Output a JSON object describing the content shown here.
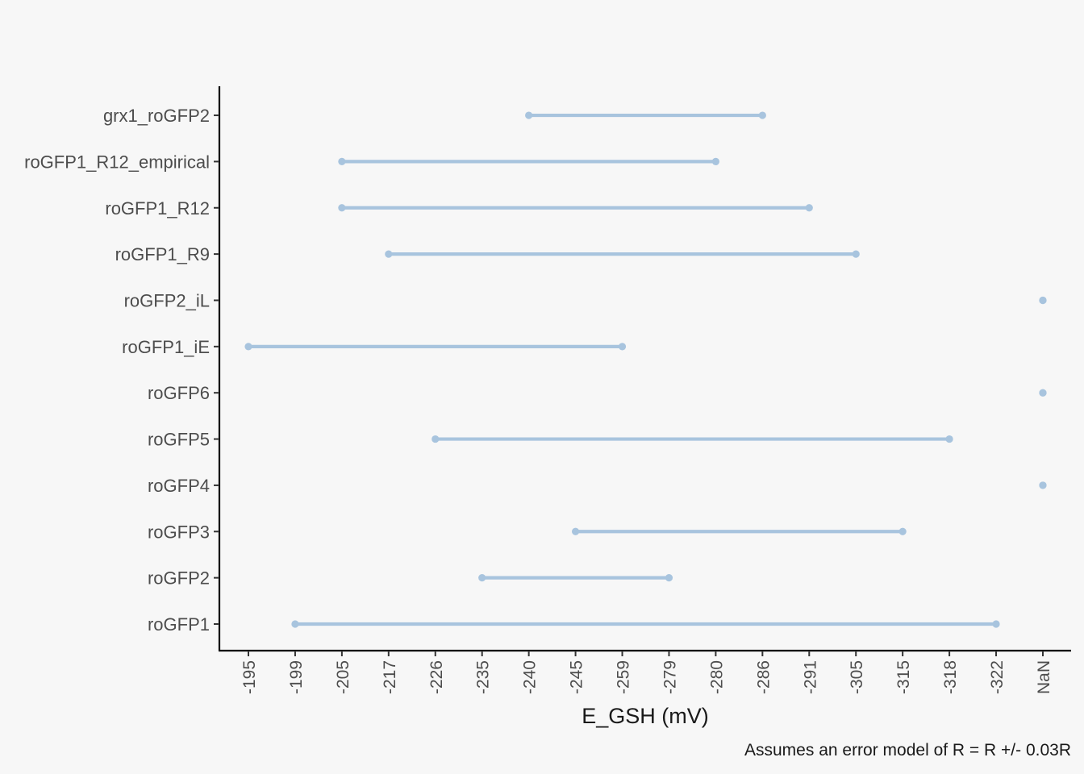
{
  "chart_data": {
    "type": "dumbbell",
    "title": "",
    "xlabel": "E_GSH (mV)",
    "ylabel": "",
    "caption": "Assumes an error model of R = R +/- 0.03R",
    "x_categories": [
      "-195",
      "-199",
      "-205",
      "-217",
      "-226",
      "-235",
      "-240",
      "-245",
      "-259",
      "-279",
      "-280",
      "-286",
      "-291",
      "-305",
      "-315",
      "-318",
      "-322",
      "NaN"
    ],
    "y_categories": [
      "roGFP1",
      "roGFP2",
      "roGFP3",
      "roGFP4",
      "roGFP5",
      "roGFP6",
      "roGFP1_iE",
      "roGFP2_iL",
      "roGFP1_R9",
      "roGFP1_R12",
      "roGFP1_R12_empirical",
      "grx1_roGFP2"
    ],
    "ranges": [
      {
        "sensor": "roGFP1",
        "low": "-199",
        "high": "-322"
      },
      {
        "sensor": "roGFP2",
        "low": "-235",
        "high": "-279"
      },
      {
        "sensor": "roGFP3",
        "low": "-245",
        "high": "-315"
      },
      {
        "sensor": "roGFP4",
        "low": "NaN",
        "high": "NaN"
      },
      {
        "sensor": "roGFP5",
        "low": "-226",
        "high": "-318"
      },
      {
        "sensor": "roGFP6",
        "low": "NaN",
        "high": "NaN"
      },
      {
        "sensor": "roGFP1_iE",
        "low": "-195",
        "high": "-259"
      },
      {
        "sensor": "roGFP2_iL",
        "low": "NaN",
        "high": "NaN"
      },
      {
        "sensor": "roGFP1_R9",
        "low": "-217",
        "high": "-305"
      },
      {
        "sensor": "roGFP1_R12",
        "low": "-205",
        "high": "-291"
      },
      {
        "sensor": "roGFP1_R12_empirical",
        "low": "-205",
        "high": "-280"
      },
      {
        "sensor": "grx1_roGFP2",
        "low": "-240",
        "high": "-286"
      }
    ],
    "grid": false,
    "legend": "none",
    "colors": {
      "segment": "#a8c4de",
      "axis": "#000000",
      "background": "#f7f7f7",
      "tick_text": "#4d4d4d"
    }
  }
}
